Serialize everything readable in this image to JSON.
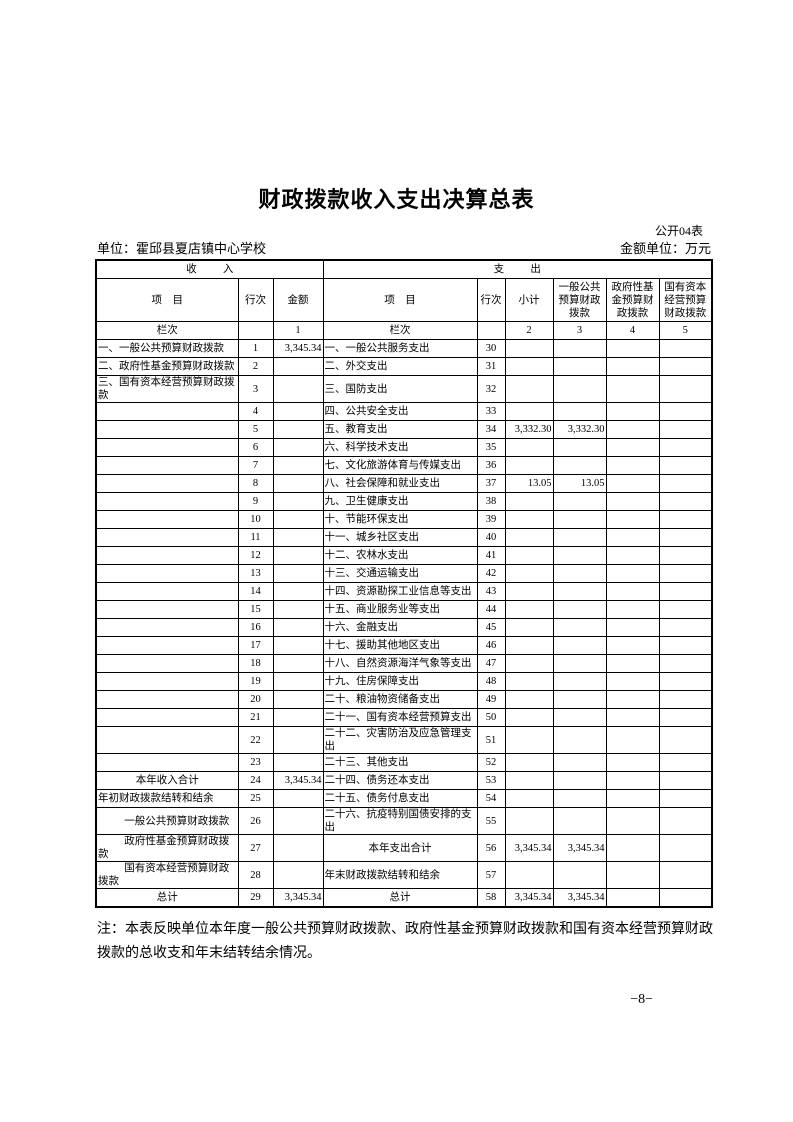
{
  "page": {
    "title": "财政拨款收入支出决算总表",
    "form_number": "公开04表",
    "unit_label": "单位：霍邱县夏店镇中心学校",
    "amount_unit_label": "金额单位：万元",
    "note": "注：本表反映单位本年度一般公共预算财政拨款、政府性基金预算财政拨款和国有资本经营预算财政拨款的总收支和年末结转结余情况。",
    "page_number": "−8−"
  },
  "table": {
    "section_income": "收入",
    "section_expense": "支出",
    "col_item": "项目",
    "col_row_no": "行次",
    "col_amount": "金额",
    "col_subtotal": "小计",
    "col_general": "一般公共预算财政拨款",
    "col_fund": "政府性基金预算财政拨款",
    "col_capital": "国有资本经营预算财政拨款",
    "index_label": "栏次",
    "index_amount": "1",
    "index_subtotal": "2",
    "index_general": "3",
    "index_fund": "4",
    "index_capital": "5",
    "rows": [
      {
        "income": "一、一般公共预算财政拨款",
        "income_no": "1",
        "income_amount": "3,345.34",
        "expense": "一、一般公共服务支出",
        "expense_no": "30"
      },
      {
        "income": "二、政府性基金预算财政拨款",
        "income_no": "2",
        "expense": "二、外交支出",
        "expense_no": "31"
      },
      {
        "income": "三、国有资本经营预算财政拨款",
        "income_no": "3",
        "expense": "三、国防支出",
        "expense_no": "32"
      },
      {
        "income": "",
        "income_no": "4",
        "expense": "四、公共安全支出",
        "expense_no": "33"
      },
      {
        "income": "",
        "income_no": "5",
        "expense": "五、教育支出",
        "expense_no": "34",
        "subtotal": "3,332.30",
        "general": "3,332.30"
      },
      {
        "income": "",
        "income_no": "6",
        "expense": "六、科学技术支出",
        "expense_no": "35"
      },
      {
        "income": "",
        "income_no": "7",
        "expense": "七、文化旅游体育与传媒支出",
        "expense_no": "36"
      },
      {
        "income": "",
        "income_no": "8",
        "expense": "八、社会保障和就业支出",
        "expense_no": "37",
        "subtotal": "13.05",
        "general": "13.05"
      },
      {
        "income": "",
        "income_no": "9",
        "expense": "九、卫生健康支出",
        "expense_no": "38"
      },
      {
        "income": "",
        "income_no": "10",
        "expense": "十、节能环保支出",
        "expense_no": "39"
      },
      {
        "income": "",
        "income_no": "11",
        "expense": "十一、城乡社区支出",
        "expense_no": "40"
      },
      {
        "income": "",
        "income_no": "12",
        "expense": "十二、农林水支出",
        "expense_no": "41"
      },
      {
        "income": "",
        "income_no": "13",
        "expense": "十三、交通运输支出",
        "expense_no": "42"
      },
      {
        "income": "",
        "income_no": "14",
        "expense": "十四、资源勘探工业信息等支出",
        "expense_no": "43"
      },
      {
        "income": "",
        "income_no": "15",
        "expense": "十五、商业服务业等支出",
        "expense_no": "44"
      },
      {
        "income": "",
        "income_no": "16",
        "expense": "十六、金融支出",
        "expense_no": "45"
      },
      {
        "income": "",
        "income_no": "17",
        "expense": "十七、援助其他地区支出",
        "expense_no": "46"
      },
      {
        "income": "",
        "income_no": "18",
        "expense": "十八、自然资源海洋气象等支出",
        "expense_no": "47"
      },
      {
        "income": "",
        "income_no": "19",
        "expense": "十九、住房保障支出",
        "expense_no": "48"
      },
      {
        "income": "",
        "income_no": "20",
        "expense": "二十、粮油物资储备支出",
        "expense_no": "49"
      },
      {
        "income": "",
        "income_no": "21",
        "expense": "二十一、国有资本经营预算支出",
        "expense_no": "50"
      },
      {
        "income": "",
        "income_no": "22",
        "expense": "二十二、灾害防治及应急管理支出",
        "expense_no": "51"
      },
      {
        "income": "",
        "income_no": "23",
        "expense": "二十三、其他支出",
        "expense_no": "52"
      },
      {
        "income": "本年收入合计",
        "income_style": "total",
        "income_no": "24",
        "income_amount": "3,345.34",
        "expense": "二十四、债务还本支出",
        "expense_no": "53"
      },
      {
        "income": "年初财政拨款结转和结余",
        "income_no": "25",
        "expense": "二十五、债务付息支出",
        "expense_no": "54"
      },
      {
        "income": "一般公共预算财政拨款",
        "income_style": "indent",
        "income_no": "26",
        "expense": "二十六、抗疫特别国债安排的支出",
        "expense_no": "55"
      },
      {
        "income": "政府性基金预算财政拨款",
        "income_style": "indent",
        "income_no": "27",
        "expense": "本年支出合计",
        "expense_style": "total",
        "expense_no": "56",
        "subtotal": "3,345.34",
        "general": "3,345.34"
      },
      {
        "income": "国有资本经营预算财政拨款",
        "income_style": "indent",
        "income_no": "28",
        "expense": "年末财政拨款结转和结余",
        "expense_no": "57"
      },
      {
        "income": "总计",
        "income_style": "total",
        "income_no": "29",
        "income_amount": "3,345.34",
        "expense": "总计",
        "expense_style": "total",
        "expense_no": "58",
        "subtotal": "3,345.34",
        "general": "3,345.34"
      }
    ]
  }
}
